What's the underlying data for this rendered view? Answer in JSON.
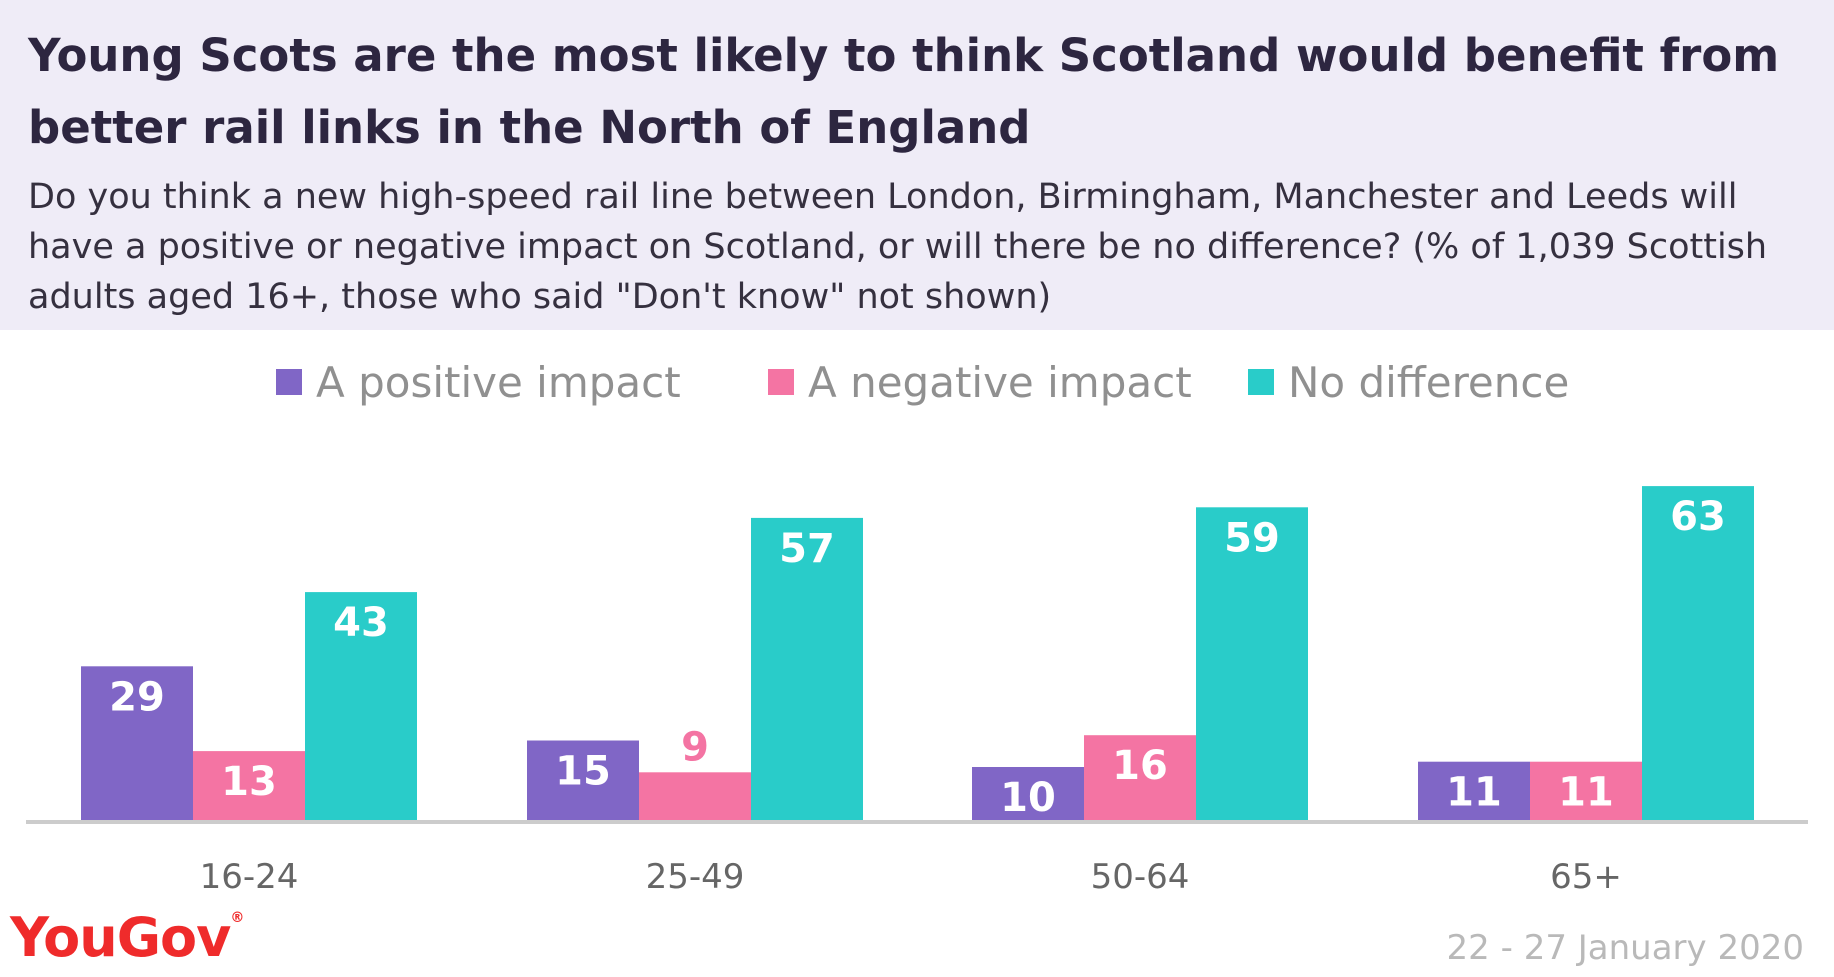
{
  "header": {
    "title": "Young Scots are the most likely to think Scotland would benefit from better rail links in the North of England",
    "subtitle": "Do you think a new high-speed rail line between London, Birmingham, Manchester and Leeds will have a positive or negative impact on Scotland, or will there be no difference? (% of 1,039 Scottish adults aged 16+, those who said \"Don't know\" not shown)"
  },
  "footer": {
    "logo": "YouGov",
    "logo_mark": "®",
    "date": "22 - 27 January 2020"
  },
  "colors": {
    "positive": "#8066c6",
    "negative": "#f474a3",
    "no_difference": "#29ccc9",
    "header_bg": "#efecf7",
    "axis": "#cccccc"
  },
  "chart_data": {
    "type": "bar",
    "categories": [
      "16-24",
      "25-49",
      "50-64",
      "65+"
    ],
    "series": [
      {
        "name": "A positive impact",
        "color": "#8066c6",
        "values": [
          29,
          15,
          10,
          11
        ]
      },
      {
        "name": "A negative impact",
        "color": "#f474a3",
        "values": [
          13,
          9,
          16,
          11
        ]
      },
      {
        "name": "No difference",
        "color": "#29ccc9",
        "values": [
          43,
          57,
          59,
          63
        ]
      }
    ],
    "ylim": [
      0,
      63
    ],
    "grid": false,
    "legend": "top-center"
  }
}
